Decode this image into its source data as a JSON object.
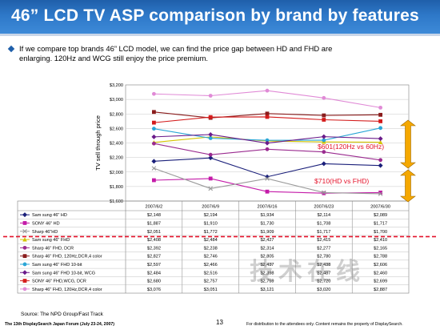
{
  "slide": {
    "title": "46” LCD TV ASP comparison by brand by features",
    "bullet_line1": "If we compare top brands 46” LCD model, we can find the price gap between HD and FHD are",
    "bullet_line2": "enlarging. 120Hz and WCG still enjoy the price premium.",
    "source": "Source: The NPD Group/Fast Track",
    "page_number": "13",
    "footer_left": "The 13th DisplaySearch Japan Forum (July 23-24, 2007)",
    "footer_right": "For distribution to the attendees only.  Content remains the property of DisplaySearch.",
    "watermark": "技术在线"
  },
  "colors": {
    "title_bar": "#2e78c8",
    "annotation_red": "#e4122a",
    "arrow_fill": "#f5a800",
    "separator_red": "#e4122a"
  },
  "annotations": [
    {
      "text": "$601(120Hz vs 60Hz)",
      "color": "#e4122a"
    },
    {
      "text": "$710(HD vs FHD)",
      "color": "#e4122a"
    }
  ],
  "chart_data": {
    "type": "line",
    "ylabel": "TV sell through price",
    "xlabel": "",
    "ylim": [
      1600,
      3200
    ],
    "ytick_step": 200,
    "ytick_labels": [
      "$1,600",
      "$1,800",
      "$2,000",
      "$2,200",
      "$2,400",
      "$2,600",
      "$2,800",
      "$3,000",
      "$3,200"
    ],
    "grid": true,
    "categories": [
      "2007/6/2",
      "2007/6/9",
      "2007/6/16",
      "2007/6/23",
      "2007/6/30"
    ],
    "series": [
      {
        "name": "Sam sung 46\" HD",
        "color": "#1a1f7a",
        "marker": "diamond",
        "values": [
          2148,
          2194,
          1934,
          2114,
          2089
        ],
        "labels": [
          "$2,148",
          "$2,194",
          "$1,934",
          "$2,114",
          "$2,089"
        ]
      },
      {
        "name": "SONY 46\" HD",
        "color": "#c41aa8",
        "marker": "square",
        "values": [
          1887,
          1910,
          1730,
          1708,
          1717
        ],
        "labels": [
          "$1,887",
          "$1,910",
          "$1,730",
          "$1,708",
          "$1,717"
        ]
      },
      {
        "name": "Sharp 46\"HD",
        "color": "#9a9a9a",
        "marker": "x",
        "values": [
          2051,
          1772,
          1909,
          1717,
          1700
        ],
        "labels": [
          "$2,051",
          "$1,772",
          "$1,909",
          "$1,717",
          "$1,700"
        ]
      },
      {
        "name": "Sam sung 46\" FHD",
        "color": "#d4c400",
        "marker": "triangle",
        "values": [
          2408,
          2484,
          2427,
          2415,
          2410
        ],
        "labels": [
          "$2,408",
          "$2,484",
          "$2,427",
          "$2,415",
          "$2,410"
        ]
      },
      {
        "name": "Sharp 46\" FHD, DCR",
        "color": "#9a2b8f",
        "marker": "circle",
        "values": [
          2392,
          2238,
          2314,
          2277,
          2165
        ],
        "labels": [
          "$2,392",
          "$2,238",
          "$2,314",
          "$2,277",
          "$2,165"
        ]
      },
      {
        "name": "Sharp 46\" FHD, 120Hz,DCR,4 color",
        "color": "#8a1c1c",
        "marker": "square",
        "values": [
          2827,
          2746,
          2805,
          2780,
          2788
        ],
        "labels": [
          "$2,827",
          "$2,746",
          "$2,805",
          "$2,780",
          "$2,788"
        ]
      },
      {
        "name": "Sam sung 46\" FHD 10-bit",
        "color": "#2aa6d6",
        "marker": "circle",
        "values": [
          2597,
          2466,
          2437,
          2438,
          2606
        ],
        "labels": [
          "$2,597",
          "$2,466",
          "$2,437",
          "$2,438",
          "$2,606"
        ]
      },
      {
        "name": "Sam sung 46\" FHD 10-bit, WCG",
        "color": "#6a1b8a",
        "marker": "diamond",
        "values": [
          2484,
          2516,
          2398,
          2487,
          2460
        ],
        "labels": [
          "$2,484",
          "$2,516",
          "$2,398",
          "$2,487",
          "$2,460"
        ]
      },
      {
        "name": "SONY 46\" FHD,WCG, DCR",
        "color": "#d41c1c",
        "marker": "square",
        "values": [
          2680,
          2757,
          2759,
          2720,
          2699
        ],
        "labels": [
          "$2,680",
          "$2,757",
          "$2,759",
          "$2,720",
          "$2,699"
        ]
      },
      {
        "name": "Sharp 46\" FHD, 120Hz,DCR,4 color",
        "color": "#e08ad6",
        "marker": "circle",
        "values": [
          3076,
          3051,
          3121,
          3020,
          2887
        ],
        "labels": [
          "$3,076",
          "$3,051",
          "$3,121",
          "$3,020",
          "$2,887"
        ]
      }
    ]
  }
}
